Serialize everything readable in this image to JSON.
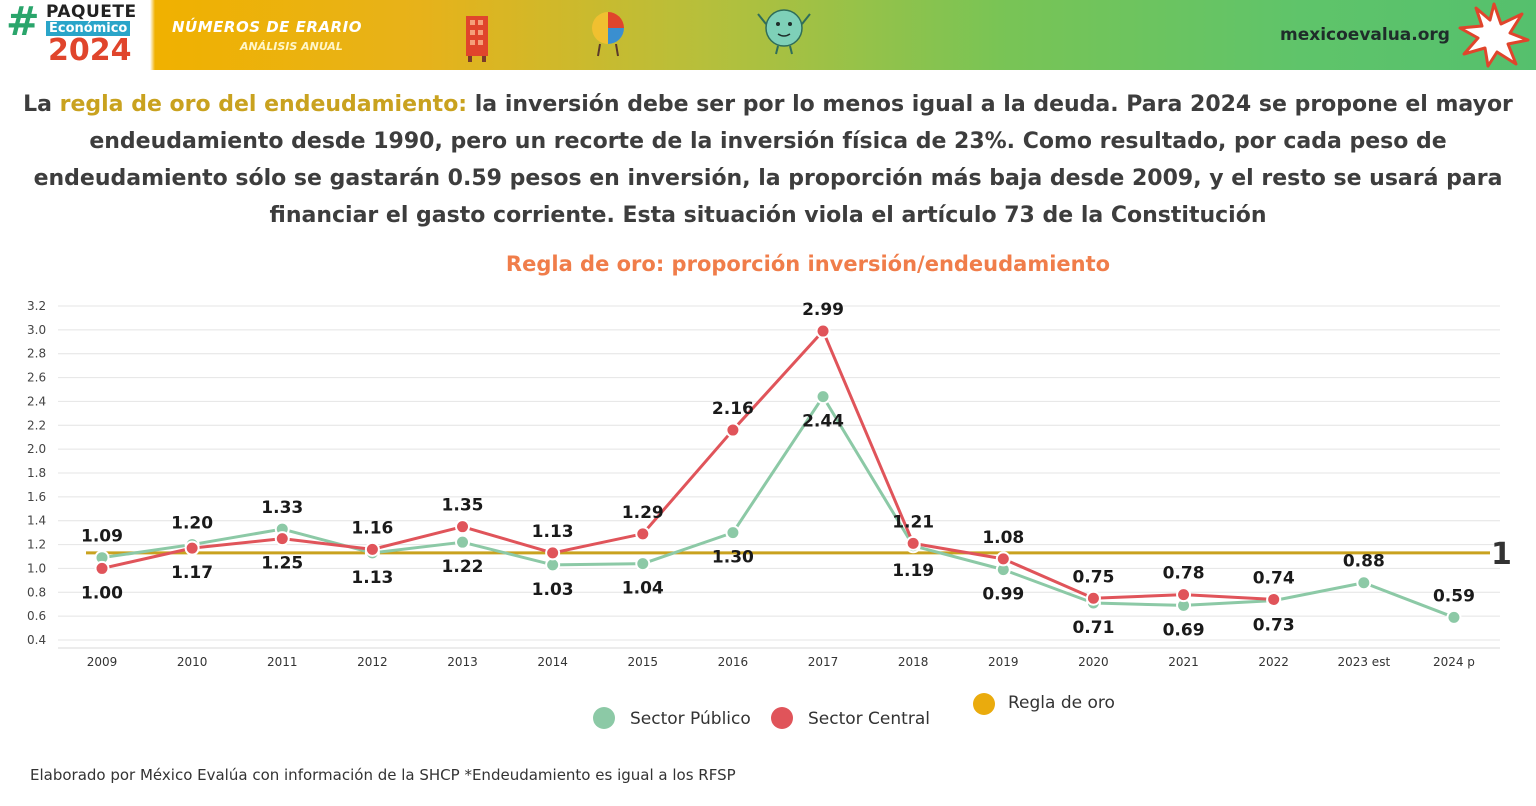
{
  "banner": {
    "logo_hash": "#",
    "logo_paquete": "PAQUETE",
    "logo_economico": "Económico",
    "logo_year": "2024",
    "erario": "NÚMEROS DE ERARIO",
    "erario_sub": "ANÁLISIS ANUAL",
    "site": "mexicoevalua.org",
    "colors": {
      "green": "#2aa56b",
      "orange": "#e0452c",
      "gradient_start": "#f0b100",
      "gradient_end": "#55c06d"
    }
  },
  "headline": {
    "lead": "La ",
    "accent": "regla de oro del endeudamiento:",
    "rest": " la inversión debe ser por lo menos igual a la deuda. Para 2024 se propone el mayor endeudamiento desde 1990, pero un recorte de la inversión física de 23%. Como resultado, por cada peso de endeudamiento sólo se gastarán 0.59 pesos en inversión, la proporción más baja desde 2009, y el resto se usará para financiar el gasto corriente. Esta situación viola el artículo 73 de la Constitución"
  },
  "chart_data": {
    "type": "line",
    "title": "Regla de oro: proporción inversión/endeudamiento",
    "categories": [
      "2009",
      "2010",
      "2011",
      "2012",
      "2013",
      "2014",
      "2015",
      "2016",
      "2017",
      "2018",
      "2019",
      "2020",
      "2021",
      "2022",
      "2023 est",
      "2024 p"
    ],
    "series": [
      {
        "name": "Sector Público",
        "color": "#8cc9a6",
        "values": [
          1.09,
          1.2,
          1.33,
          1.13,
          1.22,
          1.03,
          1.04,
          1.3,
          2.44,
          1.19,
          0.99,
          0.71,
          0.69,
          0.73,
          0.88,
          0.59
        ],
        "labels": [
          "1.09",
          "1.20",
          "1.33",
          "1.13",
          "1.22",
          "1.03",
          "1.04",
          "1.30",
          "2.44",
          "1.19",
          "0.99",
          "0.71",
          "0.69",
          "0.73",
          "0.88",
          "0.59"
        ]
      },
      {
        "name": "Sector Central",
        "color": "#e0545a",
        "values": [
          1.0,
          1.17,
          1.25,
          1.16,
          1.35,
          1.13,
          1.29,
          2.16,
          2.99,
          1.21,
          1.08,
          0.75,
          0.78,
          0.74,
          null,
          null
        ],
        "labels": [
          "1.00",
          "1.17",
          "1.25",
          "1.16",
          "1.35",
          "1.13",
          "1.29",
          "2.16",
          "2.99",
          "1.21",
          "1.08",
          "0.75",
          "0.78",
          "0.74",
          "",
          ""
        ]
      }
    ],
    "reference": {
      "name": "Regla de oro",
      "value": 1,
      "label": "1",
      "color": "#c9a21f",
      "legend_color": "#eaab0d"
    },
    "y_ticks": [
      "0.4",
      "0.6",
      "0.8",
      "1.0",
      "1.2",
      "1.4",
      "1.6",
      "1.8",
      "2.0",
      "2.2",
      "2.4",
      "2.6",
      "2.8",
      "3.0",
      "3.2"
    ],
    "ylim": [
      0.4,
      3.2
    ],
    "grid": true,
    "legend_position": "bottom"
  },
  "footer": "Elaborado por México Evalúa con información de la SHCP *Endeudamiento es igual a los RFSP"
}
